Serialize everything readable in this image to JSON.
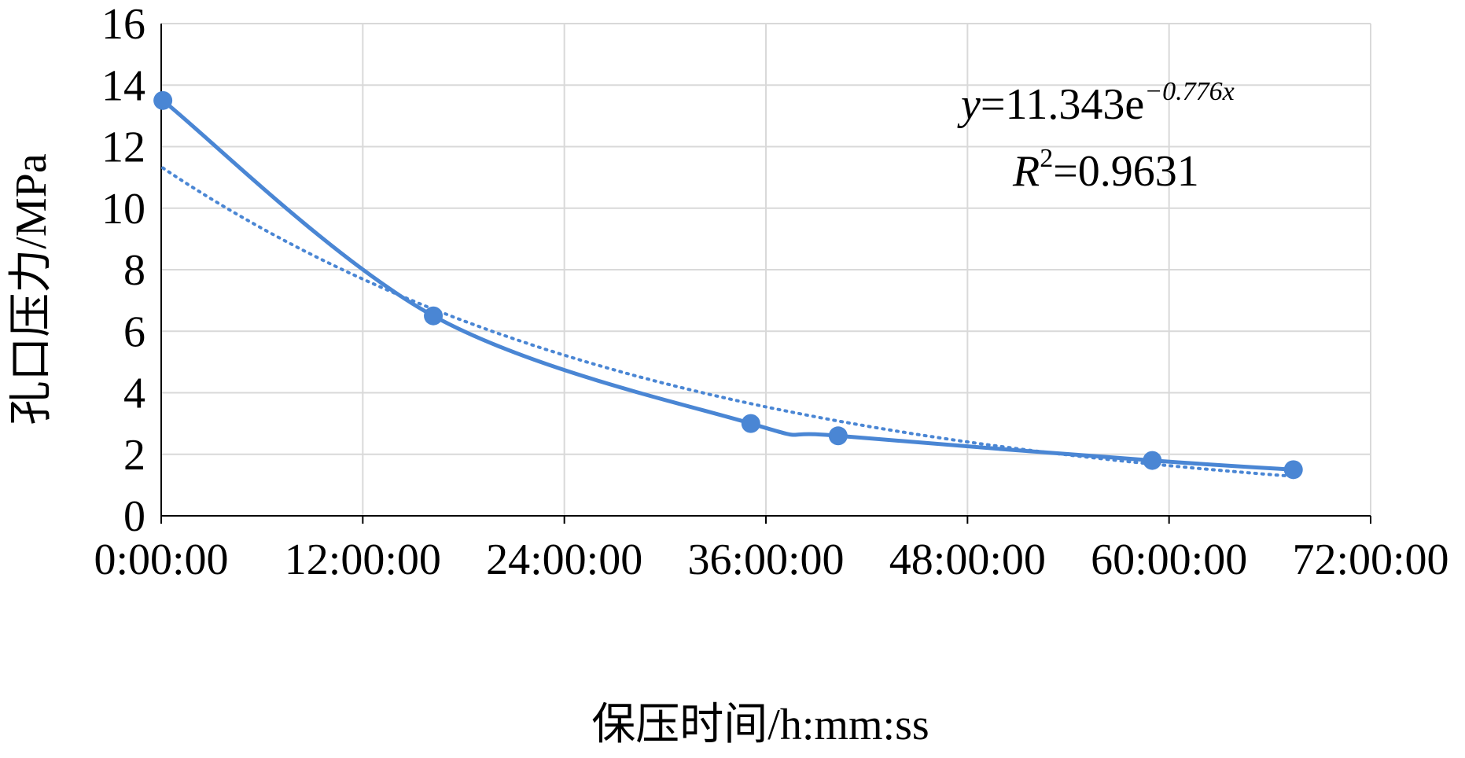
{
  "chart_data": {
    "type": "line",
    "title": "",
    "xlabel": "保压时间/h:mm:ss",
    "ylabel": "孔口压力/MPa",
    "xlim": [
      0,
      72
    ],
    "ylim": [
      0,
      16
    ],
    "x_ticks": [
      0,
      12,
      24,
      36,
      48,
      60,
      72
    ],
    "x_tick_labels": [
      "0:00:00",
      "12:00:00",
      "24:00:00",
      "36:00:00",
      "48:00:00",
      "60:00:00",
      "72:00:00"
    ],
    "y_ticks": [
      0,
      2,
      4,
      6,
      8,
      10,
      12,
      14,
      16
    ],
    "y_tick_labels": [
      "0",
      "2",
      "4",
      "6",
      "8",
      "10",
      "12",
      "14",
      "16"
    ],
    "grid": true,
    "colors": {
      "series": "#4a86d4",
      "grid": "#d9d9d9",
      "axis": "#000000"
    },
    "series": [
      {
        "x": [
          0.1,
          16.2,
          35.1,
          40.3,
          59.0,
          67.4
        ],
        "y": [
          13.5,
          6.5,
          3.0,
          2.6,
          1.8,
          1.5
        ],
        "style": "solid-smooth-markers"
      }
    ],
    "trendline": {
      "type": "exponential",
      "a": 11.343,
      "b": -0.776,
      "x_unit_days_per_hour": 24,
      "style": "dotted",
      "equation": {
        "y_var": "y",
        "eq_main": "=11.343e",
        "exponent": "−0.776x",
        "r_var": "R",
        "r_sup": "2",
        "r_value": "=0.9631"
      }
    }
  }
}
